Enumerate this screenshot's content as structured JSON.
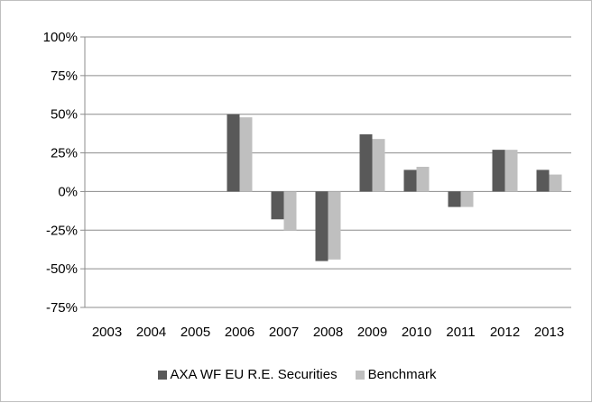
{
  "chart_data": {
    "type": "bar",
    "categories": [
      "2003",
      "2004",
      "2005",
      "2006",
      "2007",
      "2008",
      "2009",
      "2010",
      "2011",
      "2012",
      "2013"
    ],
    "series": [
      {
        "name": "AXA WF EU R.E. Securities",
        "color": "#595959",
        "values": [
          null,
          null,
          null,
          50,
          -18,
          -45,
          37,
          14,
          -10,
          27,
          14
        ]
      },
      {
        "name": "Benchmark",
        "color": "#bfbfbf",
        "values": [
          null,
          null,
          null,
          48,
          -25,
          -44,
          34,
          16,
          -10,
          27,
          11
        ]
      }
    ],
    "y_ticks": [
      "100%",
      "75%",
      "50%",
      "25%",
      "0%",
      "-25%",
      "-50%",
      "-75%"
    ],
    "ylim": [
      -75,
      100
    ],
    "grid": true,
    "legend_position": "bottom"
  }
}
